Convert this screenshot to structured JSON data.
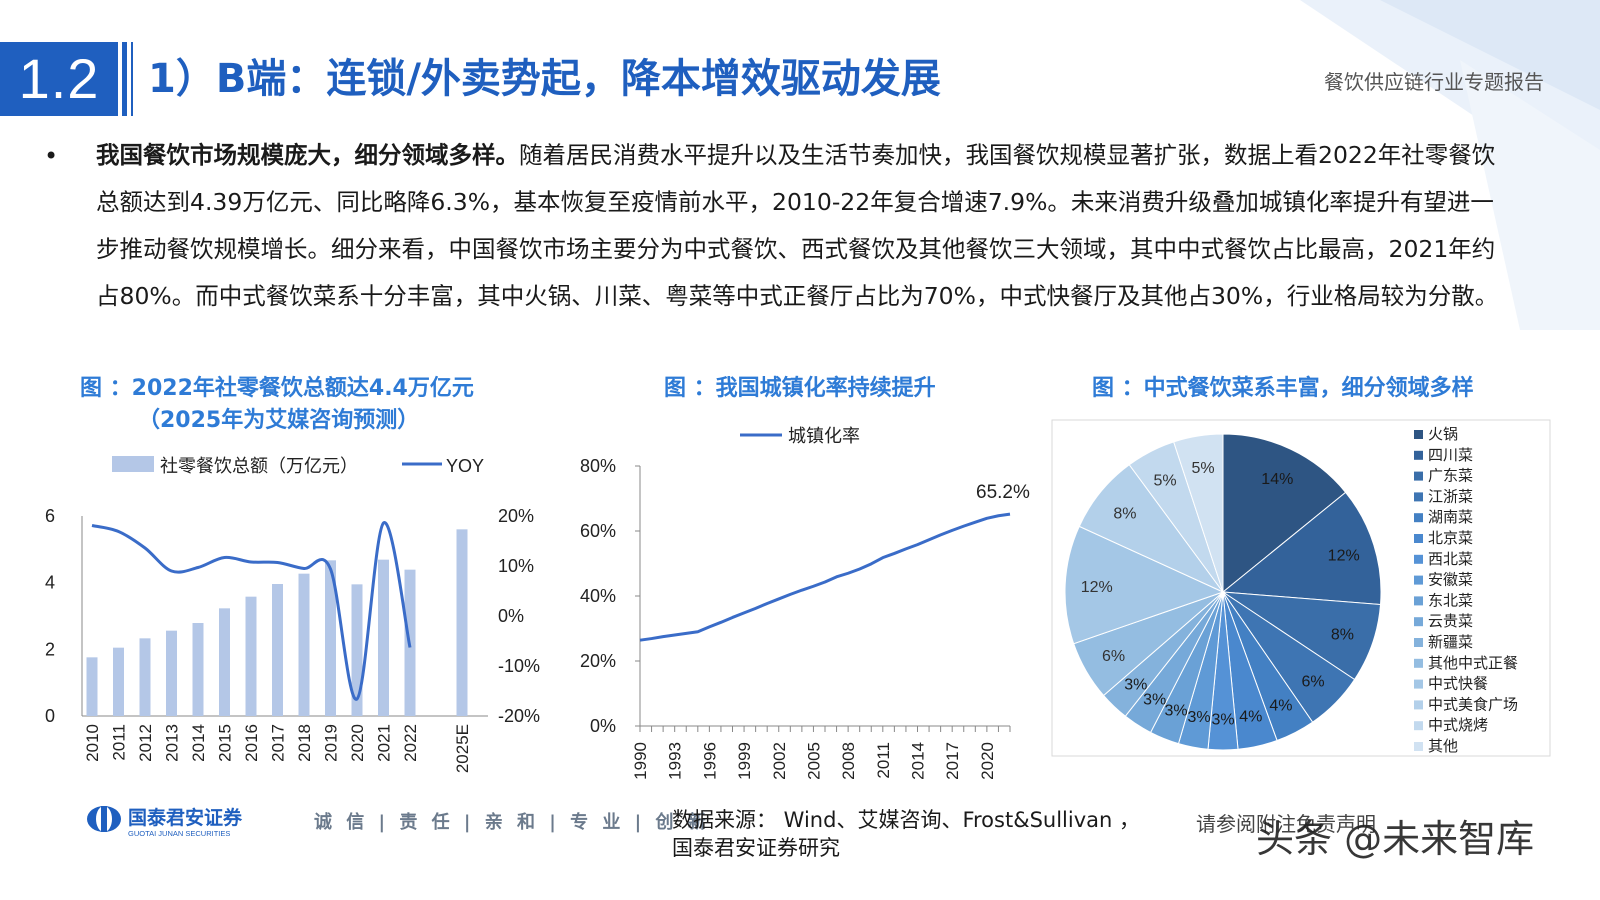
{
  "header": {
    "section_number": "1.2",
    "title": "1）B端：连锁/外卖势起，降本增效驱动发展",
    "report_name": "餐饮供应链行业专题报告"
  },
  "body": {
    "bullet": "•",
    "lead": "我国餐饮市场规模庞大，细分领域多样。",
    "text": "随着居民消费水平提升以及生活节奏加快，我国餐饮规模显著扩张，数据上看2022年社零餐饮总额达到4.39万亿元、同比略降6.3%，基本恢复至疫情前水平，2010-22年复合增速7.9%。未来消费升级叠加城镇化率提升有望进一步推动餐饮规模增长。细分来看，中国餐饮市场主要分为中式餐饮、西式餐饮及其他餐饮三大领域，其中中式餐饮占比最高，2021年约占80%。而中式餐饮菜系十分丰富，其中火锅、川菜、粤菜等中式正餐厅占比为70%，中式快餐厅及其他占30%，行业格局较为分散。"
  },
  "figures": {
    "fig1_title_line1": "图 ：2022年社零餐饮总额达4.4万亿元",
    "fig1_title_line2": "（2025年为艾媒咨询预测）",
    "fig2_title": "图 ：我国城镇化率持续提升",
    "fig3_title": "图 ：中式餐饮菜系丰富，细分领域多样"
  },
  "chart_data": [
    {
      "type": "bar",
      "categories": [
        "2010",
        "2011",
        "2012",
        "2013",
        "2014",
        "2015",
        "2016",
        "2017",
        "2018",
        "2019",
        "2020",
        "2021",
        "2022",
        "2025E"
      ],
      "series": [
        {
          "name": "社零餐饮总额（万亿元）",
          "axis": "left",
          "values": [
            1.76,
            2.05,
            2.33,
            2.56,
            2.79,
            3.23,
            3.58,
            3.96,
            4.27,
            4.67,
            3.95,
            4.69,
            4.39,
            5.6
          ]
        },
        {
          "name": "YOY",
          "type": "line",
          "axis": "right",
          "unit": "%",
          "values": [
            18.1,
            16.9,
            13.6,
            9.0,
            9.7,
            11.7,
            10.8,
            10.7,
            9.5,
            9.4,
            -16.6,
            18.6,
            -6.3,
            null
          ]
        }
      ],
      "left_ticks": [
        "0",
        "2",
        "4",
        "6"
      ],
      "right_ticks": [
        "-20%",
        "-10%",
        "0%",
        "10%",
        "20%"
      ],
      "ylim_left": [
        0,
        6
      ],
      "ylim_right": [
        -20,
        20
      ],
      "colors": {
        "bar": "#b4c7e7",
        "line": "#3a6cc8"
      }
    },
    {
      "type": "line",
      "x": [
        1990,
        1991,
        1992,
        1993,
        1994,
        1995,
        1996,
        1997,
        1998,
        1999,
        2000,
        2001,
        2002,
        2003,
        2004,
        2005,
        2006,
        2007,
        2008,
        2009,
        2010,
        2011,
        2012,
        2013,
        2014,
        2015,
        2016,
        2017,
        2018,
        2019,
        2020,
        2021,
        2022
      ],
      "series": [
        {
          "name": "城镇化率",
          "values": [
            26.4,
            26.9,
            27.5,
            28.0,
            28.5,
            29.0,
            30.5,
            31.9,
            33.4,
            34.8,
            36.2,
            37.7,
            39.1,
            40.5,
            41.8,
            43.0,
            44.3,
            45.9,
            47.0,
            48.3,
            49.9,
            51.8,
            53.1,
            54.5,
            55.8,
            57.3,
            58.8,
            60.2,
            61.5,
            62.7,
            63.9,
            64.7,
            65.2
          ]
        }
      ],
      "x_tick_labels": [
        "1990",
        "1993",
        "1996",
        "1999",
        "2002",
        "2005",
        "2008",
        "2011",
        "2014",
        "2017",
        "2020"
      ],
      "y_ticks": [
        "0%",
        "20%",
        "40%",
        "60%",
        "80%"
      ],
      "ylim": [
        0,
        80
      ],
      "annotation": "65.2%",
      "color": "#3a6cc8"
    },
    {
      "type": "pie",
      "labels": [
        "火锅",
        "四川菜",
        "广东菜",
        "江浙菜",
        "湖南菜",
        "北京菜",
        "西北菜",
        "安徽菜",
        "东北菜",
        "云贵菜",
        "新疆菜",
        "其他中式正餐",
        "中式快餐",
        "中式美食广场",
        "中式烧烤",
        "其他"
      ],
      "values": [
        14,
        12,
        8,
        6,
        4,
        4,
        3,
        3,
        3,
        3,
        3,
        6,
        12,
        8,
        5,
        5
      ],
      "data_labels": [
        "14%",
        "12%",
        "8%",
        "6%",
        "4%",
        "4%",
        "3%",
        "3%",
        "3%",
        "3%",
        "3%",
        "6%",
        "12%",
        "8%",
        "5%",
        "5%"
      ],
      "colors": [
        "#2e5583",
        "#33629a",
        "#3a6ea9",
        "#3e75b3",
        "#4380c3",
        "#4a88ce",
        "#5592d6",
        "#5f9ad6",
        "#6aa1d6",
        "#76a9d9",
        "#84b2dc",
        "#94bde1",
        "#a4c7e6",
        "#b3d0ea",
        "#c2d9ee",
        "#d1e2f2"
      ],
      "legend_position": "right"
    }
  ],
  "footer": {
    "logo_name": "国泰君安证券",
    "logo_sub": "GUOTAI JUNAN SECURITIES",
    "slogan": "诚 信 | 责 任 | 亲 和 | 专 业 | 创 新",
    "source_line1": "数据来源： Wind、艾媒咨询、Frost&Sullivan ，",
    "source_line2": "国泰君安证券研究",
    "disclaimer": "请参阅附注免责声明",
    "watermark": "头条 @未来智库"
  }
}
